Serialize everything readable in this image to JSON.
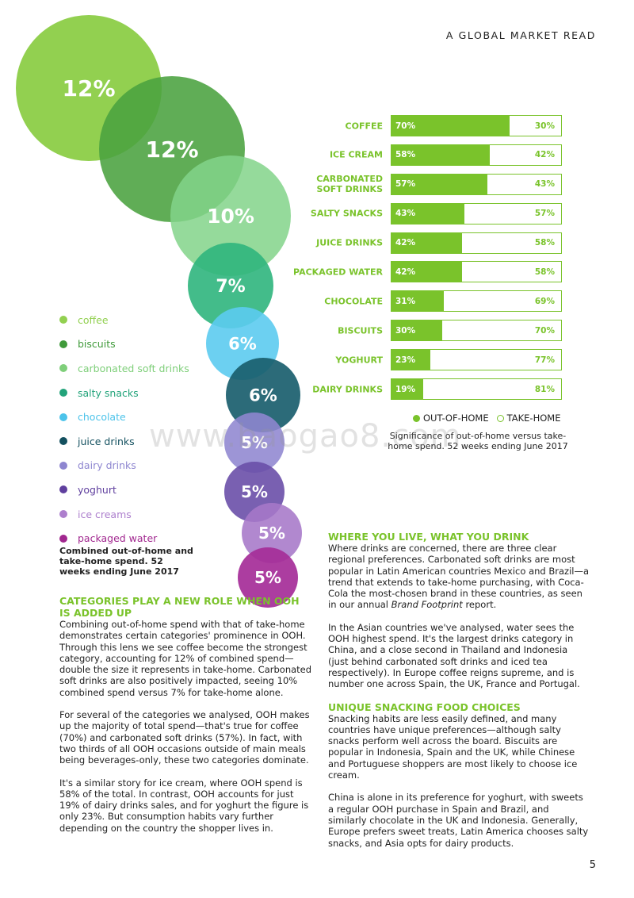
{
  "header": {
    "title": "A GLOBAL MARKET READ"
  },
  "bubbles": [
    {
      "label": "12%",
      "category": "coffee",
      "color": "#92d050"
    },
    {
      "label": "12%",
      "category": "biscuits",
      "color": "#4aa23f"
    },
    {
      "label": "10%",
      "category": "carbonated soft drinks",
      "color": "#82d48a"
    },
    {
      "label": "7%",
      "category": "salty snacks",
      "color": "#2fb57d"
    },
    {
      "label": "6%",
      "category": "chocolate",
      "color": "#5ccbef"
    },
    {
      "label": "6%",
      "category": "juice drinks",
      "color": "#1a5e6e"
    },
    {
      "label": "5%",
      "category": "dairy drinks",
      "color": "#8f86d0"
    },
    {
      "label": "5%",
      "category": "yoghurt",
      "color": "#6a4fa8"
    },
    {
      "label": "5%",
      "category": "ice creams",
      "color": "#a678c8"
    },
    {
      "label": "5%",
      "category": "packaged water",
      "color": "#a52c98"
    }
  ],
  "legend": [
    {
      "label": "coffee",
      "color": "#92d050"
    },
    {
      "label": "biscuits",
      "color": "#3f9a3a"
    },
    {
      "label": "carbonated soft drinks",
      "color": "#7fcf7a"
    },
    {
      "label": "salty snacks",
      "color": "#22a37a"
    },
    {
      "label": "chocolate",
      "color": "#4cc3ea"
    },
    {
      "label": "juice drinks",
      "color": "#13505f"
    },
    {
      "label": "dairy drinks",
      "color": "#8e86d0"
    },
    {
      "label": "yoghurt",
      "color": "#5f3f9e"
    },
    {
      "label": "ice creams",
      "color": "#ad7fcd"
    },
    {
      "label": "packaged water",
      "color": "#a1278f"
    }
  ],
  "combined_caption": "Combined out-of-home and take-home spend. 52 weeks ending June 2017",
  "chart_data": {
    "type": "bar",
    "categories": [
      "COFFEE",
      "ICE CREAM",
      "CARBONATED SOFT DRINKS",
      "SALTY SNACKS",
      "JUICE DRINKS",
      "PACKAGED WATER",
      "CHOCOLATE",
      "BISCUITS",
      "YOGHURT",
      "DAIRY DRINKS"
    ],
    "series": [
      {
        "name": "OUT-OF-HOME",
        "values": [
          70,
          58,
          57,
          43,
          42,
          42,
          31,
          30,
          23,
          19
        ],
        "labels": [
          "70%",
          "58%",
          "57%",
          "43%",
          "42%",
          "42%",
          "31%",
          "30%",
          "23%",
          "19%"
        ]
      },
      {
        "name": "TAKE-HOME",
        "values": [
          30,
          42,
          43,
          57,
          58,
          58,
          69,
          70,
          77,
          81
        ],
        "labels": [
          "30%",
          "42%",
          "43%",
          "57%",
          "58%",
          "58%",
          "69%",
          "70%",
          "77%",
          "81%"
        ]
      }
    ],
    "stacked": true,
    "legend_placement": "bottom",
    "accent_color": "#7ac32b"
  },
  "bar_legend": {
    "ooh": "OUT-OF-HOME",
    "th": "TAKE-HOME"
  },
  "bar_caption": "Significance of out-of-home versus take-home spend. 52 weeks ending June 2017",
  "watermark": "www.baogao8.com",
  "left_column": {
    "heading": "CATEGORIES PLAY A NEW ROLE WHEN OOH IS ADDED UP",
    "p1": "Combining out-of-home spend with that of take-home demonstrates certain categories' prominence in OOH. Through this lens we see coffee become the strongest category, accounting for 12% of combined spend—double the size it represents in take-home. Carbonated soft drinks are also positively impacted, seeing 10% combined spend versus 7% for take-home alone.",
    "p2": "For several of the categories we analysed, OOH makes up the majority of total spend—that's true for coffee (70%) and carbonated soft drinks (57%). In fact, with two thirds of all OOH occasions outside of main meals being beverages-only, these two categories dominate.",
    "p3": "It's a similar story for ice cream, where OOH spend is 58% of the total. In contrast, OOH accounts for just 19% of dairy drinks sales, and for yoghurt the figure is only 23%. But consumption habits vary further depending on the country the shopper lives in."
  },
  "right_column": {
    "heading1": "WHERE YOU LIVE, WHAT YOU DRINK",
    "p1_before": "Where drinks are concerned, there are three clear regional preferences. Carbonated soft drinks are most popular in Latin American countries Mexico and Brazil—a trend that extends to take-home purchasing, with Coca-Cola the most-chosen brand in these countries, as seen in our annual ",
    "p1_italic": "Brand Footprint",
    "p1_after": " report.",
    "p2": "In the Asian countries we've analysed, water sees the OOH highest spend. It's the largest drinks category in China, and a close second in Thailand and Indonesia (just behind carbonated soft drinks and iced tea respectively). In Europe coffee reigns supreme, and is number one across Spain, the UK, France and Portugal.",
    "heading2": "UNIQUE SNACKING FOOD CHOICES",
    "p3": "Snacking habits are less easily defined, and many countries have unique preferences—although salty snacks perform well across the board. Biscuits are popular in Indonesia, Spain and the UK, while Chinese and Portuguese shoppers are most likely to choose ice cream.",
    "p4": "China is alone in its preference for yoghurt, with sweets a regular OOH purchase in Spain and Brazil, and similarly chocolate in the UK and Indonesia. Generally, Europe prefers sweet treats, Latin America chooses salty snacks, and Asia opts for dairy products."
  },
  "page_number": "5"
}
